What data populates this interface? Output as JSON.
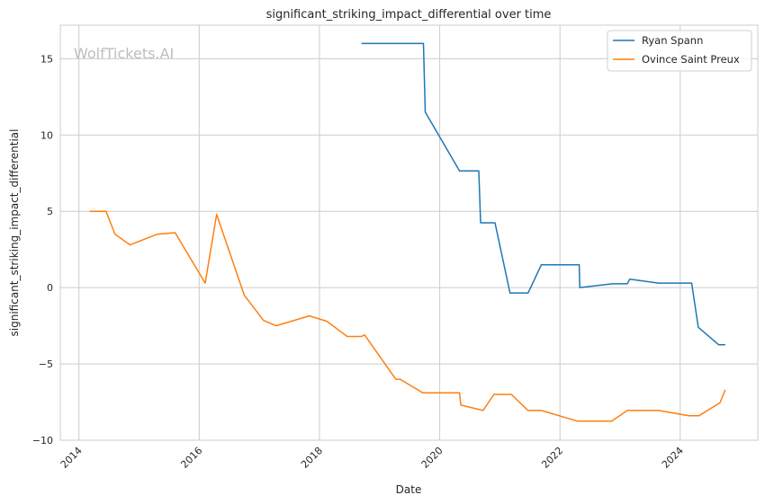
{
  "watermark": "WolfTickets.AI",
  "chart_data": {
    "type": "line",
    "title": "significant_striking_impact_differential over time",
    "xlabel": "Date",
    "ylabel": "significant_striking_impact_differential",
    "xlim": [
      2013.69,
      2025.29
    ],
    "ylim": [
      -10,
      17.2
    ],
    "xticks": [
      2014,
      2016,
      2018,
      2020,
      2022,
      2024
    ],
    "xtick_labels": [
      "2014",
      "2016",
      "2018",
      "2020",
      "2022",
      "2024"
    ],
    "yticks": [
      -10,
      -5,
      0,
      5,
      10,
      15
    ],
    "ytick_labels": [
      "−10",
      "−5",
      "0",
      "5",
      "10",
      "15"
    ],
    "grid": true,
    "legend_position": "top-right",
    "series": [
      {
        "name": "Ryan Spann",
        "color": "#1f77b4",
        "x": [
          2018.7,
          2019.73,
          2019.76,
          2020.33,
          2020.65,
          2020.68,
          2020.92,
          2021.17,
          2021.47,
          2021.69,
          2022.32,
          2022.33,
          2022.87,
          2023.12,
          2023.16,
          2023.64,
          2024.19,
          2024.3,
          2024.64,
          2024.75
        ],
        "y": [
          16.0,
          16.0,
          11.5,
          7.65,
          7.65,
          4.25,
          4.25,
          -0.35,
          -0.35,
          1.5,
          1.5,
          0.0,
          0.25,
          0.25,
          0.55,
          0.3,
          0.3,
          -2.6,
          -3.75,
          -3.75
        ]
      },
      {
        "name": "Ovince Saint Preux",
        "color": "#ff7f0e",
        "x": [
          2014.18,
          2014.45,
          2014.6,
          2014.85,
          2015.3,
          2015.6,
          2016.1,
          2016.29,
          2016.75,
          2017.07,
          2017.28,
          2017.83,
          2018.12,
          2018.46,
          2018.7,
          2018.75,
          2019.27,
          2019.34,
          2019.72,
          2020.33,
          2020.35,
          2020.72,
          2020.9,
          2021.19,
          2021.47,
          2021.69,
          2022.29,
          2022.86,
          2023.12,
          2023.64,
          2024.15,
          2024.31,
          2024.66,
          2024.75
        ],
        "y": [
          5.0,
          5.0,
          3.5,
          2.8,
          3.5,
          3.6,
          0.3,
          4.8,
          -0.5,
          -2.15,
          -2.5,
          -1.85,
          -2.2,
          -3.2,
          -3.2,
          -3.1,
          -6.0,
          -6.0,
          -6.9,
          -6.9,
          -7.7,
          -8.05,
          -7.0,
          -7.0,
          -8.05,
          -8.05,
          -8.75,
          -8.75,
          -8.05,
          -8.05,
          -8.4,
          -8.4,
          -7.55,
          -6.7
        ]
      }
    ]
  }
}
